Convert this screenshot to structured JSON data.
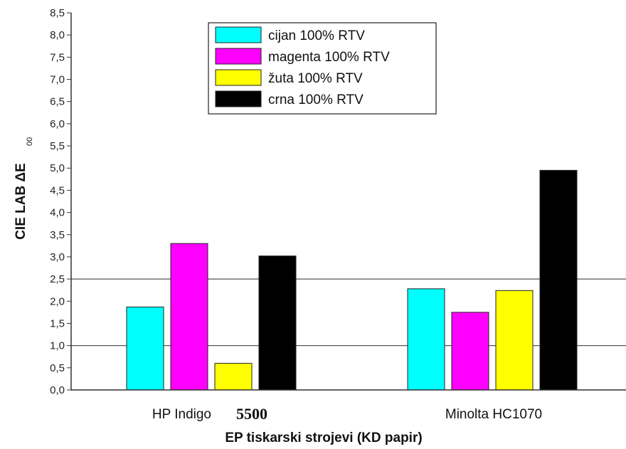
{
  "chart_data": {
    "type": "bar",
    "categories": [
      "HP Indigo",
      "Minolta HC1070"
    ],
    "category_suffix": [
      "5500",
      ""
    ],
    "series": [
      {
        "name": "cijan 100% RTV",
        "color": "#00FFFF",
        "values": [
          1.87,
          2.28
        ]
      },
      {
        "name": "magenta 100% RTV",
        "color": "#FF00FF",
        "values": [
          3.3,
          1.75
        ]
      },
      {
        "name": "žuta 100% RTV",
        "color": "#FFFF00",
        "values": [
          0.6,
          2.24
        ]
      },
      {
        "name": "crna 100% RTV",
        "color": "#000000",
        "values": [
          3.02,
          4.95
        ]
      }
    ],
    "xlabel": "EP tiskarski strojevi (KD papir)",
    "ylabel": "CIE LAB ΔE",
    "ylabel_sub": "00",
    "ylim": [
      0,
      8.5
    ],
    "yticks": [
      "0,0",
      "0,5",
      "1,0",
      "1,5",
      "2,0",
      "2,5",
      "3,0",
      "3,5",
      "4,0",
      "4,5",
      "5,0",
      "5,5",
      "6,0",
      "6,5",
      "7,0",
      "7,5",
      "8,0",
      "8,5"
    ],
    "reference_lines": [
      1.0,
      2.5
    ],
    "legend_position": "top-center",
    "grid": false
  }
}
